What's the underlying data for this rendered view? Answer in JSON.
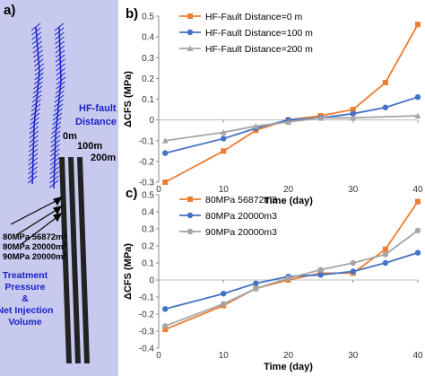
{
  "panel_a": {
    "label": "a)",
    "hf_fault_label_1": "HF-fault",
    "hf_fault_label_2": "Distance",
    "distances": [
      "0m",
      "100m",
      "200m"
    ],
    "cases": [
      "80MPa 56872m³",
      "80MPa 20000m³",
      "90MPa 20000m³"
    ],
    "caption": [
      "Treatment",
      "Pressure",
      "&",
      "Net Injection",
      "Volume"
    ],
    "colors": {
      "text_blue": "#1a21c9",
      "background": "#c7c9ee"
    }
  },
  "chart_data": [
    {
      "panel_label": "b)",
      "type": "line",
      "xlabel": "Time (day)",
      "ylabel": "ΔCFS (MPa)",
      "xlim": [
        0,
        40
      ],
      "ylim": [
        -0.3,
        0.5
      ],
      "xticks": [
        0,
        10,
        20,
        30,
        40
      ],
      "yticks": [
        -0.3,
        -0.2,
        -0.1,
        0,
        0.1,
        0.2,
        0.3,
        0.4,
        0.5
      ],
      "show_x_tick_labels": false,
      "grid": false,
      "legend_position": "top-left",
      "series": [
        {
          "name": "HF-Fault Distance=0 m",
          "color": "#ed7d31",
          "marker": "square",
          "x": [
            1,
            10,
            15,
            20,
            25,
            30,
            35,
            40
          ],
          "y": [
            -0.3,
            -0.15,
            -0.05,
            0.0,
            0.02,
            0.05,
            0.18,
            0.46
          ]
        },
        {
          "name": "HF-Fault Distance=100 m",
          "color": "#4472c4",
          "marker": "circle",
          "x": [
            1,
            10,
            15,
            20,
            25,
            30,
            35,
            40
          ],
          "y": [
            -0.16,
            -0.09,
            -0.04,
            0.0,
            0.01,
            0.03,
            0.06,
            0.11
          ]
        },
        {
          "name": "HF-Fault Distance=200 m",
          "color": "#a5a5a5",
          "marker": "triangle",
          "x": [
            1,
            10,
            15,
            20,
            25,
            30,
            40
          ],
          "y": [
            -0.1,
            -0.06,
            -0.03,
            -0.01,
            0.01,
            0.01,
            0.02
          ]
        }
      ]
    },
    {
      "panel_label": "c)",
      "type": "line",
      "xlabel": "Time (day)",
      "ylabel": "ΔCFS (MPa)",
      "xlim": [
        0,
        40
      ],
      "ylim": [
        -0.4,
        0.5
      ],
      "xticks": [
        0,
        10,
        20,
        30,
        40
      ],
      "yticks": [
        -0.4,
        -0.3,
        -0.2,
        -0.1,
        0,
        0.1,
        0.2,
        0.3,
        0.4,
        0.5
      ],
      "show_x_tick_labels": true,
      "grid": false,
      "legend_position": "top-left",
      "series": [
        {
          "name": "80MPa 56872m3",
          "color": "#ed7d31",
          "marker": "square",
          "x": [
            1,
            10,
            15,
            20,
            25,
            30,
            35,
            40
          ],
          "y": [
            -0.29,
            -0.15,
            -0.05,
            0.0,
            0.04,
            0.04,
            0.18,
            0.46
          ]
        },
        {
          "name": "80MPa 20000m3",
          "color": "#4472c4",
          "marker": "circle",
          "x": [
            1,
            10,
            15,
            20,
            25,
            30,
            35,
            40
          ],
          "y": [
            -0.17,
            -0.08,
            -0.02,
            0.02,
            0.03,
            0.05,
            0.1,
            0.16
          ]
        },
        {
          "name": "90MPa 20000m3",
          "color": "#a5a5a5",
          "marker": "circle",
          "x": [
            1,
            10,
            15,
            20,
            25,
            30,
            35,
            40
          ],
          "y": [
            -0.27,
            -0.14,
            -0.05,
            0.01,
            0.06,
            0.1,
            0.15,
            0.29
          ]
        }
      ]
    }
  ]
}
